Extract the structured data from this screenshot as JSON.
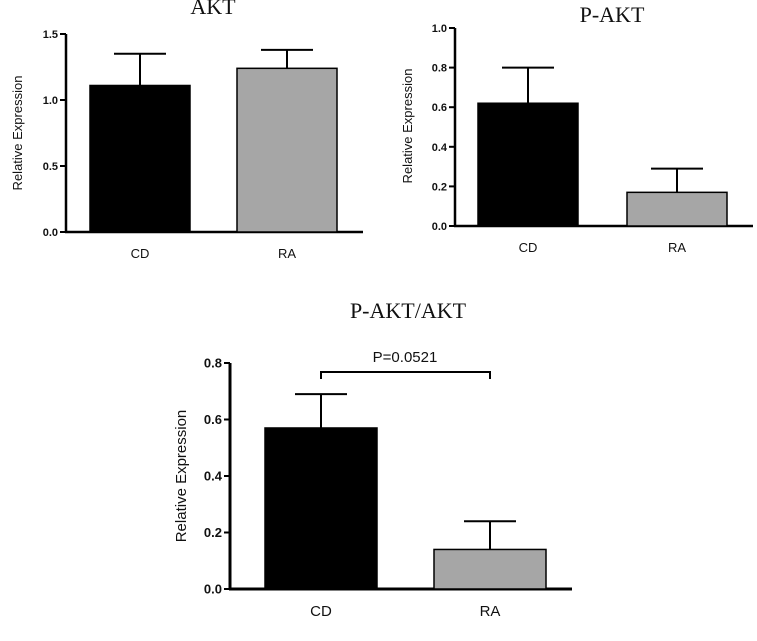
{
  "chart_data": [
    {
      "type": "bar",
      "title": "AKT",
      "ylabel": "Relative Expression",
      "categories": [
        "CD",
        "RA"
      ],
      "values": [
        1.11,
        1.24
      ],
      "errors": [
        0.24,
        0.14
      ],
      "colors": [
        "#000000",
        "#a6a6a6"
      ],
      "ylim": [
        0,
        1.5
      ],
      "yticks": [
        "0.0",
        "0.5",
        "1.0",
        "1.5"
      ],
      "grid": false,
      "legend": "none"
    },
    {
      "type": "bar",
      "title": "P-AKT",
      "ylabel": "Relative Expression",
      "categories": [
        "CD",
        "RA"
      ],
      "values": [
        0.62,
        0.17
      ],
      "errors": [
        0.18,
        0.12
      ],
      "colors": [
        "#000000",
        "#a6a6a6"
      ],
      "ylim": [
        0,
        1.0
      ],
      "yticks": [
        "0.0",
        "0.2",
        "0.4",
        "0.6",
        "0.8",
        "1.0"
      ],
      "grid": false,
      "legend": "none"
    },
    {
      "type": "bar",
      "title": "P-AKT/AKT",
      "ylabel": "Relative Expression",
      "categories": [
        "CD",
        "RA"
      ],
      "values": [
        0.57,
        0.14
      ],
      "errors": [
        0.12,
        0.1
      ],
      "colors": [
        "#000000",
        "#a6a6a6"
      ],
      "ylim": [
        0,
        0.8
      ],
      "yticks": [
        "0.0",
        "0.2",
        "0.4",
        "0.6",
        "0.8"
      ],
      "annotation": "P=0.0521",
      "grid": false,
      "legend": "none"
    }
  ]
}
